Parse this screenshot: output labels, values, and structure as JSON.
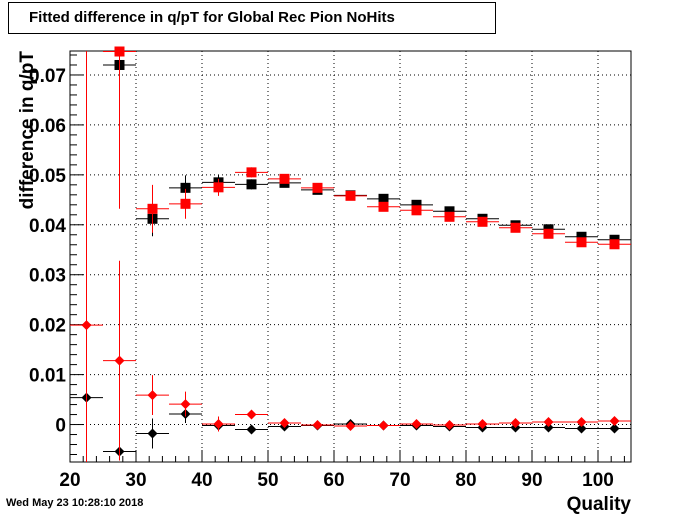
{
  "chart_data": {
    "type": "scatter",
    "title": "Fitted difference in q/pT for Global Rec Pion NoHits",
    "xlabel": "Quality",
    "ylabel": "difference in q/pT",
    "xlim": [
      20,
      105
    ],
    "ylim": [
      -0.0075,
      0.0748
    ],
    "x_ticks": [
      "20",
      "30",
      "40",
      "50",
      "60",
      "70",
      "80",
      "90",
      "100"
    ],
    "y_ticks": [
      "0",
      "0.01",
      "0.02",
      "0.03",
      "0.04",
      "0.05",
      "0.06",
      "0.07"
    ],
    "grid": true,
    "x_bin_half_width": 2.5,
    "series": [
      {
        "marker": "square",
        "color": "#000000",
        "points": [
          {
            "x": 27.5,
            "y": 0.072,
            "err": 0.0
          },
          {
            "x": 32.5,
            "y": 0.0412,
            "err": 0.0035
          },
          {
            "x": 37.5,
            "y": 0.0474,
            "err": 0.0025
          },
          {
            "x": 42.5,
            "y": 0.0485,
            "err": 0.0015
          },
          {
            "x": 47.5,
            "y": 0.0481,
            "err": 0.001
          },
          {
            "x": 52.5,
            "y": 0.0484,
            "err": 0.0005
          },
          {
            "x": 57.5,
            "y": 0.047,
            "err": 0.0004
          },
          {
            "x": 62.5,
            "y": 0.0459,
            "err": 0.0003
          },
          {
            "x": 67.5,
            "y": 0.0452,
            "err": 0.0003
          },
          {
            "x": 72.5,
            "y": 0.044,
            "err": 0.0003
          },
          {
            "x": 77.5,
            "y": 0.0427,
            "err": 0.0003
          },
          {
            "x": 82.5,
            "y": 0.0412,
            "err": 0.0003
          },
          {
            "x": 87.5,
            "y": 0.0399,
            "err": 0.0003
          },
          {
            "x": 92.5,
            "y": 0.0391,
            "err": 0.0003
          },
          {
            "x": 97.5,
            "y": 0.0376,
            "err": 0.0003
          },
          {
            "x": 102.5,
            "y": 0.037,
            "err": 0.0003
          }
        ]
      },
      {
        "marker": "square",
        "color": "#ff0000",
        "points": [
          {
            "x": 27.5,
            "y": 0.0747,
            "err": 0.0315
          },
          {
            "x": 32.5,
            "y": 0.0432,
            "err": 0.0048
          },
          {
            "x": 37.5,
            "y": 0.0442,
            "err": 0.003
          },
          {
            "x": 42.5,
            "y": 0.0475,
            "err": 0.0017
          },
          {
            "x": 47.5,
            "y": 0.0505,
            "err": 0.001
          },
          {
            "x": 52.5,
            "y": 0.0492,
            "err": 0.0005
          },
          {
            "x": 57.5,
            "y": 0.0474,
            "err": 0.0004
          },
          {
            "x": 62.5,
            "y": 0.0458,
            "err": 0.0003
          },
          {
            "x": 67.5,
            "y": 0.0436,
            "err": 0.0003
          },
          {
            "x": 72.5,
            "y": 0.0429,
            "err": 0.0003
          },
          {
            "x": 77.5,
            "y": 0.0416,
            "err": 0.0003
          },
          {
            "x": 82.5,
            "y": 0.0406,
            "err": 0.0003
          },
          {
            "x": 87.5,
            "y": 0.0394,
            "err": 0.0003
          },
          {
            "x": 92.5,
            "y": 0.0382,
            "err": 0.0003
          },
          {
            "x": 97.5,
            "y": 0.0365,
            "err": 0.0003
          },
          {
            "x": 102.5,
            "y": 0.0361,
            "err": 0.0003
          }
        ]
      },
      {
        "marker": "diamond",
        "color": "#000000",
        "points": [
          {
            "x": 22.5,
            "y": 0.0054,
            "err": 0.0
          },
          {
            "x": 27.5,
            "y": -0.0054,
            "err": 0.0
          },
          {
            "x": 32.5,
            "y": -0.0018,
            "err": 0.003
          },
          {
            "x": 37.5,
            "y": 0.0021,
            "err": 0.0018
          },
          {
            "x": 42.5,
            "y": -0.0002,
            "err": 0.0012
          },
          {
            "x": 47.5,
            "y": -0.001,
            "err": 0.0007
          },
          {
            "x": 52.5,
            "y": -0.0004,
            "err": 0.0004
          },
          {
            "x": 57.5,
            "y": -0.0002,
            "err": 0.0003
          },
          {
            "x": 62.5,
            "y": 0.0001,
            "err": 0.0003
          },
          {
            "x": 67.5,
            "y": -0.0002,
            "err": 0.0003
          },
          {
            "x": 72.5,
            "y": -0.0002,
            "err": 0.0003
          },
          {
            "x": 77.5,
            "y": -0.0004,
            "err": 0.0003
          },
          {
            "x": 82.5,
            "y": -0.0006,
            "err": 0.0003
          },
          {
            "x": 87.5,
            "y": -0.0006,
            "err": 0.0003
          },
          {
            "x": 92.5,
            "y": -0.0006,
            "err": 0.0003
          },
          {
            "x": 97.5,
            "y": -0.0008,
            "err": 0.0003
          },
          {
            "x": 102.5,
            "y": -0.0008,
            "err": 0.0003
          }
        ]
      },
      {
        "marker": "diamond",
        "color": "#ff0000",
        "points": [
          {
            "x": 22.5,
            "y": 0.0199,
            "err": 0.075
          },
          {
            "x": 27.5,
            "y": 0.0128,
            "err": 0.02
          },
          {
            "x": 32.5,
            "y": 0.0059,
            "err": 0.004
          },
          {
            "x": 37.5,
            "y": 0.0041,
            "err": 0.0025
          },
          {
            "x": 42.5,
            "y": 0.0001,
            "err": 0.0015
          },
          {
            "x": 47.5,
            "y": 0.002,
            "err": 0.0008
          },
          {
            "x": 52.5,
            "y": 0.0003,
            "err": 0.0004
          },
          {
            "x": 57.5,
            "y": -0.0001,
            "err": 0.0003
          },
          {
            "x": 62.5,
            "y": -0.0003,
            "err": 0.0003
          },
          {
            "x": 67.5,
            "y": -0.0002,
            "err": 0.0003
          },
          {
            "x": 72.5,
            "y": 0.0001,
            "err": 0.0003
          },
          {
            "x": 77.5,
            "y": -0.0001,
            "err": 0.0003
          },
          {
            "x": 82.5,
            "y": 0.0001,
            "err": 0.0003
          },
          {
            "x": 87.5,
            "y": 0.0003,
            "err": 0.0003
          },
          {
            "x": 92.5,
            "y": 0.0005,
            "err": 0.0003
          },
          {
            "x": 97.5,
            "y": 0.0005,
            "err": 0.0003
          },
          {
            "x": 102.5,
            "y": 0.0007,
            "err": 0.0003
          }
        ]
      }
    ]
  },
  "footer": {
    "datetime": "Wed May 23 10:28:10 2018"
  }
}
